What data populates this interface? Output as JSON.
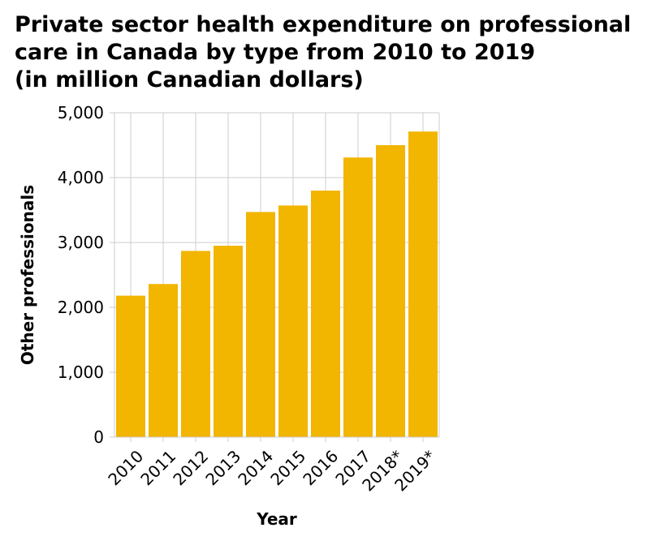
{
  "chart_data": {
    "type": "bar",
    "title_lines": [
      "Private sector health expenditure on professional",
      "care in Canada by type from 2010 to 2019",
      "(in million Canadian dollars)"
    ],
    "xlabel": "Year",
    "ylabel": "Other professionals",
    "categories": [
      "2010",
      "2011",
      "2012",
      "2013",
      "2014",
      "2015",
      "2016",
      "2017",
      "2018*",
      "2019*"
    ],
    "values": [
      2180,
      2360,
      2870,
      2950,
      3470,
      3570,
      3800,
      4310,
      4500,
      4710
    ],
    "ylim": [
      0,
      5000
    ],
    "yticks": [
      0,
      1000,
      2000,
      3000,
      4000,
      5000
    ],
    "ytick_labels": [
      "0",
      "1,000",
      "2,000",
      "3,000",
      "4,000",
      "5,000"
    ],
    "grid": true,
    "bar_color": "#f2b500",
    "grid_color": "#cccccc"
  }
}
